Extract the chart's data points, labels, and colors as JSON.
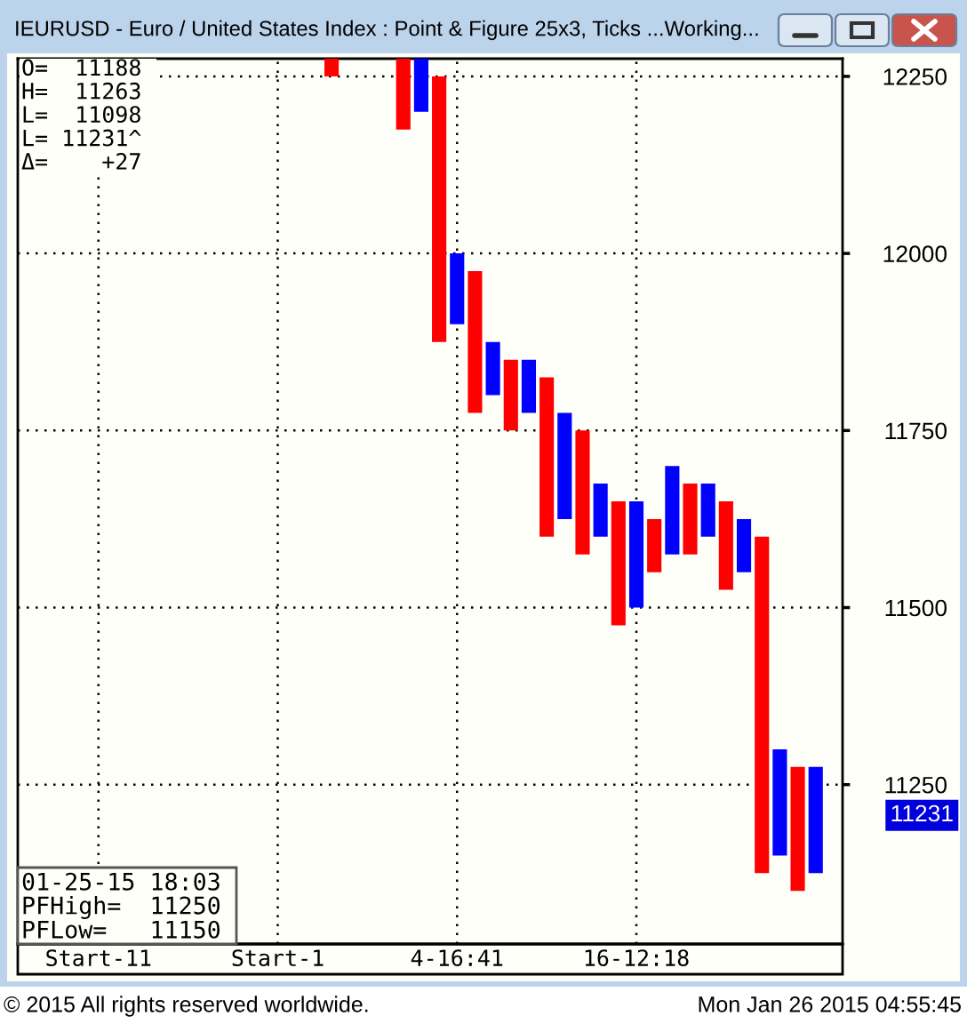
{
  "chart_data": {
    "type": "bar",
    "title": "IEURUSD - Euro / United States Index : Point & Figure 25x3, Ticks ...Working...",
    "categories": [
      null,
      null,
      null,
      null,
      "Start-11",
      null,
      null,
      null,
      null,
      null,
      null,
      null,
      null,
      null,
      "Start-1",
      null,
      null,
      null,
      null,
      null,
      null,
      null,
      null,
      null,
      "4-16:41",
      null,
      null,
      null,
      null,
      null,
      null,
      null,
      null,
      null,
      "16-12:18",
      null,
      null,
      null,
      null,
      null,
      null,
      null,
      null,
      null,
      null,
      null
    ],
    "series": [
      {
        "color": "#ff0000",
        "base": [
          null,
          null,
          null,
          null,
          null,
          null,
          null,
          null,
          null,
          null,
          null,
          null,
          null,
          null,
          null,
          null,
          null,
          12250,
          null,
          null,
          null,
          12175,
          null,
          11875,
          null,
          11775,
          null,
          11750,
          null,
          11600,
          null,
          11575,
          null,
          11475,
          null,
          11550,
          null,
          11575,
          null,
          11525,
          null,
          11125,
          null,
          11100,
          null,
          null
        ],
        "values": [
          null,
          null,
          null,
          null,
          null,
          null,
          null,
          null,
          null,
          null,
          null,
          null,
          null,
          null,
          null,
          null,
          null,
          25,
          null,
          null,
          null,
          100,
          null,
          375,
          null,
          200,
          null,
          100,
          null,
          225,
          null,
          175,
          null,
          175,
          null,
          75,
          null,
          100,
          null,
          125,
          null,
          475,
          null,
          175,
          null,
          null
        ]
      },
      {
        "color": "#0000ff",
        "base": [
          null,
          null,
          null,
          null,
          null,
          null,
          null,
          null,
          null,
          null,
          null,
          null,
          null,
          null,
          null,
          null,
          null,
          null,
          null,
          null,
          null,
          null,
          12200,
          null,
          11900,
          null,
          11800,
          null,
          11775,
          null,
          11625,
          null,
          11600,
          null,
          11500,
          null,
          11575,
          null,
          11600,
          null,
          11550,
          null,
          11150,
          null,
          11125,
          null
        ],
        "values": [
          null,
          null,
          null,
          null,
          null,
          null,
          null,
          null,
          null,
          null,
          null,
          null,
          null,
          null,
          null,
          null,
          null,
          null,
          null,
          null,
          null,
          null,
          75,
          null,
          100,
          null,
          75,
          null,
          75,
          null,
          150,
          null,
          75,
          null,
          150,
          null,
          125,
          null,
          75,
          null,
          75,
          null,
          150,
          null,
          150,
          null
        ]
      }
    ],
    "ylim": [
      11025,
      12275
    ],
    "yticks": [
      12250,
      12000,
      11750,
      11500,
      11250
    ],
    "grid": true,
    "annotations": [
      "O= 11188",
      "H= 11263",
      "L= 11098",
      "L= 11231^",
      "Δ= +27",
      "01-25-15 18:03",
      "PFHigh= 11250",
      "PFLow= 11150",
      "© 2015 All rights reserved worldwide.",
      "Mon Jan 26 2015 04:55:45",
      "11231"
    ]
  }
}
